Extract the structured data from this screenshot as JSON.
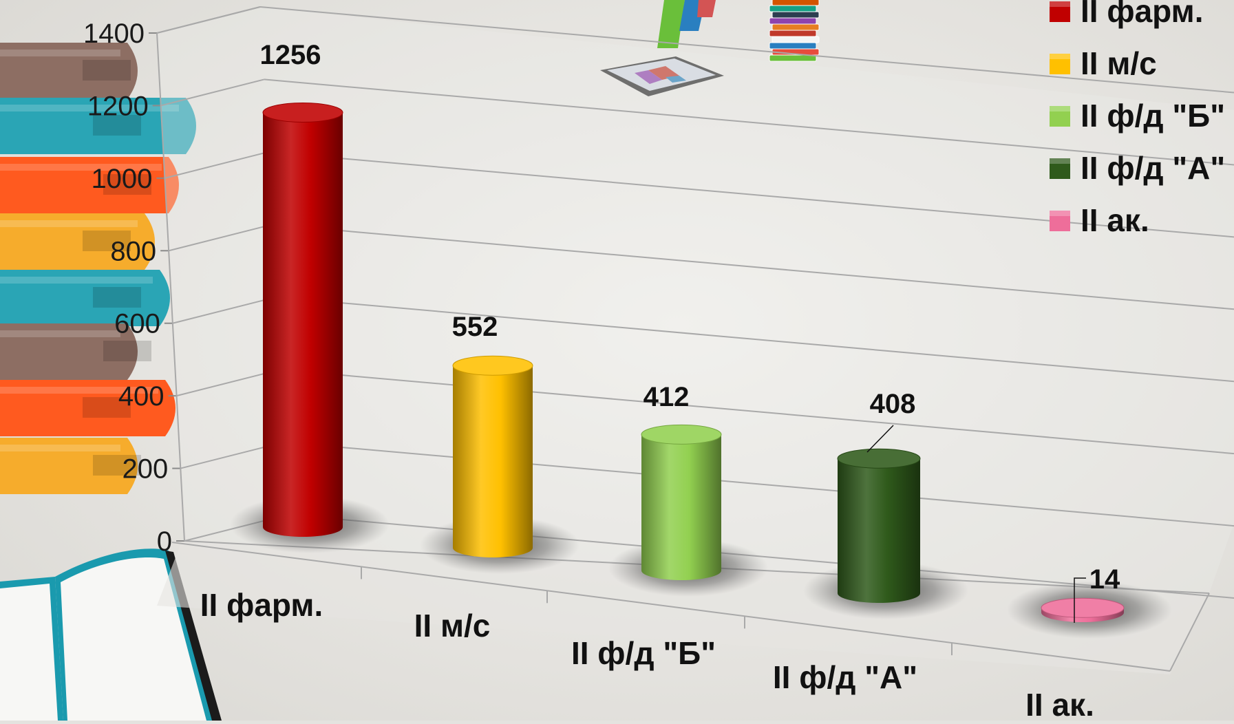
{
  "chart_data": {
    "type": "bar",
    "style": "3d-cylinder",
    "title": "",
    "xlabel": "",
    "ylabel": "",
    "categories": [
      "II фарм.",
      "II м/с",
      "II ф/д \"Б\"",
      "II ф/д \"А\"",
      "II ак."
    ],
    "series": [
      {
        "values": [
          1256,
          552,
          412,
          408,
          14
        ]
      }
    ],
    "bar_colors": [
      "#c00000",
      "#ffc000",
      "#92d050",
      "#2f5a1b",
      "#ee6e9a"
    ],
    "value_labels": [
      "1256",
      "552",
      "412",
      "408",
      "14"
    ],
    "ylim": [
      0,
      1400
    ],
    "y_ticks": [
      "0",
      "200",
      "400",
      "600",
      "800",
      "1000",
      "1200",
      "1400"
    ],
    "grid": true,
    "legend": {
      "placement": "top-right",
      "entries": [
        "II фарм.",
        "II м/с",
        "II ф/д \"Б\"",
        "II ф/д \"А\"",
        "II ак."
      ]
    }
  },
  "decor": {
    "book_stripe_colors": [
      "#8d6e63",
      "#2aa5b5",
      "#ff5a1f",
      "#f6ac2c",
      "#2aa5b5",
      "#8d6e63",
      "#ff5a1f",
      "#f6ac2c"
    ],
    "illustration_icons": [
      "tablet-icon",
      "book-stack-icon",
      "open-book-icon"
    ]
  }
}
